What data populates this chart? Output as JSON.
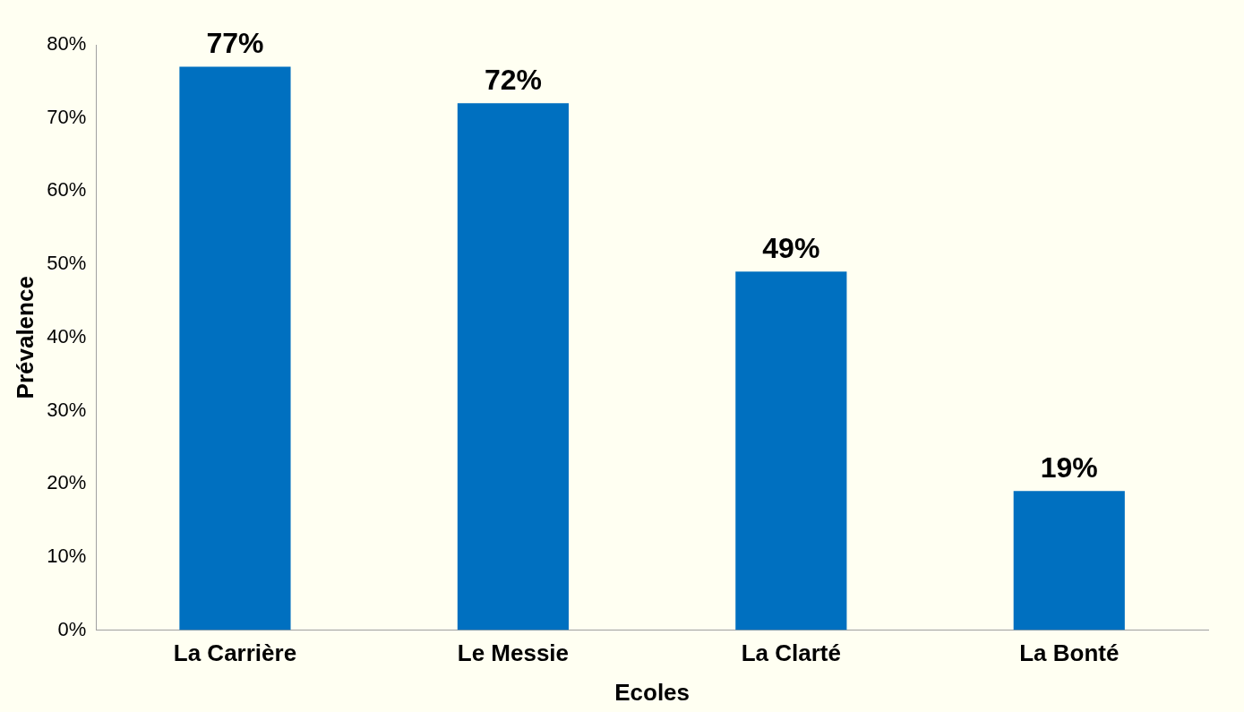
{
  "chart_data": {
    "type": "bar",
    "categories": [
      "La Carrière",
      "Le Messie",
      "La Clarté",
      "La Bonté"
    ],
    "values": [
      77,
      72,
      49,
      19
    ],
    "value_labels": [
      "77%",
      "72%",
      "49%",
      "19%"
    ],
    "color": "#0070c0",
    "xlabel": "Ecoles",
    "ylabel": "Prévalence",
    "ylim": [
      0,
      80
    ],
    "yticks": [
      {
        "value": 0,
        "label": "0%"
      },
      {
        "value": 10,
        "label": "10%"
      },
      {
        "value": 20,
        "label": "20%"
      },
      {
        "value": 30,
        "label": "30%"
      },
      {
        "value": 40,
        "label": "40%"
      },
      {
        "value": 50,
        "label": "50%"
      },
      {
        "value": 60,
        "label": "60%"
      },
      {
        "value": 70,
        "label": "70%"
      },
      {
        "value": 80,
        "label": "80%"
      }
    ],
    "grid": false,
    "legend": false
  }
}
